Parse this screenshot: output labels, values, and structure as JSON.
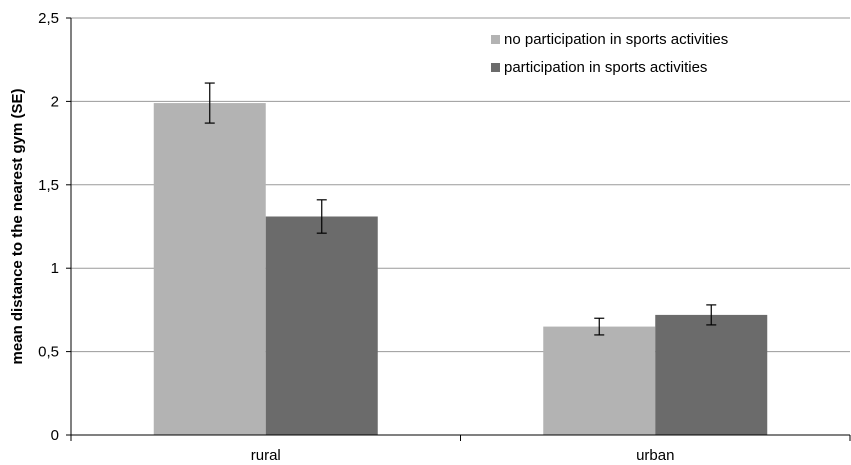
{
  "chart_data": {
    "type": "bar",
    "title": "",
    "xlabel": "",
    "ylabel": "mean distance to the nearest gym (SE)",
    "ylim": [
      0,
      2.5
    ],
    "yticks": [
      "0",
      "0,5",
      "1",
      "1,5",
      "2",
      "2,5"
    ],
    "yticks_values": [
      0,
      0.5,
      1,
      1.5,
      2,
      2.5
    ],
    "grid": true,
    "legend_position": "top-right",
    "categories": [
      "rural",
      "urban"
    ],
    "series": [
      {
        "name": "no participation in sports activities",
        "color": "#b3b3b3",
        "values": [
          1.99,
          0.65
        ],
        "errors": [
          0.12,
          0.05
        ]
      },
      {
        "name": "participation in sports activities",
        "color": "#6b6b6b",
        "values": [
          1.31,
          0.72
        ],
        "errors": [
          0.1,
          0.06
        ]
      }
    ]
  }
}
